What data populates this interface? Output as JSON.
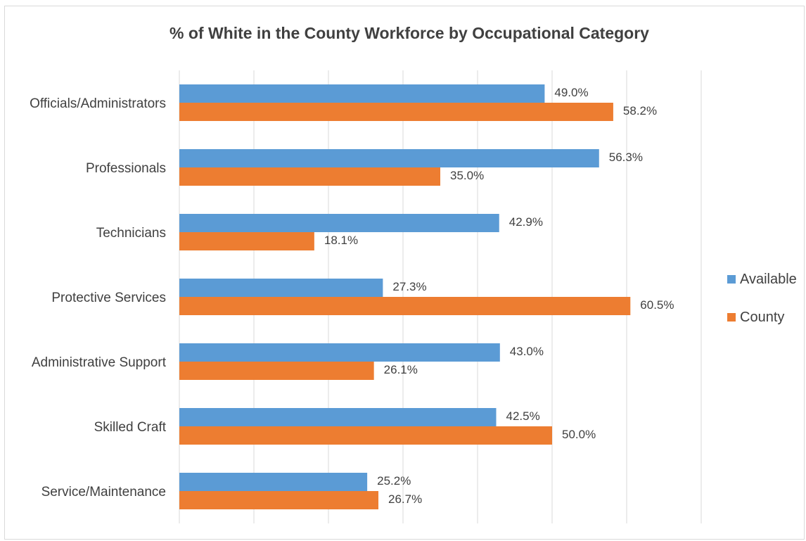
{
  "chart_data": {
    "type": "bar",
    "orientation": "horizontal",
    "title": "% of White in the County Workforce by Occupational Category",
    "xlabel": "",
    "ylabel": "",
    "xlim": [
      0,
      70
    ],
    "grid": true,
    "legend_position": "right",
    "categories": [
      "Officials/Administrators",
      "Professionals",
      "Technicians",
      "Protective Services",
      "Administrative Support",
      "Skilled Craft",
      "Service/Maintenance"
    ],
    "series": [
      {
        "name": "Available",
        "color": "#5B9BD5",
        "values": [
          49.0,
          56.3,
          42.9,
          27.3,
          43.0,
          42.5,
          25.2
        ],
        "labels": [
          "49.0%",
          "56.3%",
          "42.9%",
          "27.3%",
          "43.0%",
          "42.5%",
          "25.2%"
        ]
      },
      {
        "name": "County",
        "color": "#ED7D31",
        "values": [
          58.2,
          35.0,
          18.1,
          60.5,
          26.1,
          50.0,
          26.7
        ],
        "labels": [
          "58.2%",
          "35.0%",
          "18.1%",
          "60.5%",
          "26.1%",
          "50.0%",
          "26.7%"
        ]
      }
    ]
  }
}
